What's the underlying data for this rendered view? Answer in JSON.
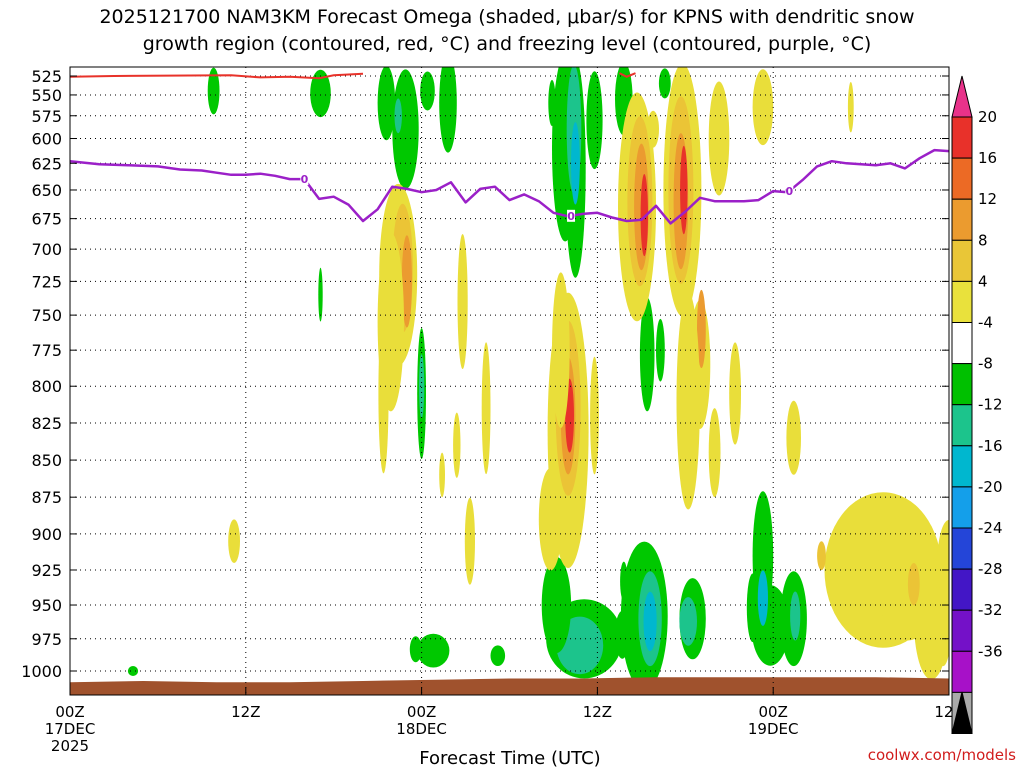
{
  "chart_data": {
    "type": "heatmap",
    "title_line1": "2025121700 NAM3KM Forecast Omega (shaded, μbar/s) for KPNS with dendritic snow",
    "title_line2": "growth region (contoured, red, °C) and freezing level (contoured, purple, °C)",
    "xlabel": "Forecast Time (UTC)",
    "credit": "coolwx.com/models",
    "y_ticks": [
      525,
      550,
      575,
      600,
      625,
      650,
      675,
      700,
      725,
      750,
      775,
      800,
      825,
      850,
      875,
      900,
      925,
      950,
      975,
      1000
    ],
    "x_ticks": [
      {
        "hour": 0,
        "label": "00Z",
        "sub": "17DEC",
        "sub2": "2025"
      },
      {
        "hour": 12,
        "label": "12Z",
        "sub": "",
        "sub2": ""
      },
      {
        "hour": 24,
        "label": "00Z",
        "sub": "18DEC",
        "sub2": ""
      },
      {
        "hour": 36,
        "label": "12Z",
        "sub": "",
        "sub2": ""
      },
      {
        "hour": 48,
        "label": "00Z",
        "sub": "19DEC",
        "sub2": ""
      },
      {
        "hour": 60,
        "label": "12Z",
        "sub": "",
        "sub2": ""
      }
    ],
    "colorbar": {
      "labels": [
        20,
        16,
        12,
        8,
        4,
        -4,
        -8,
        -12,
        -16,
        -20,
        -24,
        -28,
        -32,
        -36
      ],
      "colors": [
        "#e8328a",
        "#e8312a",
        "#ec6a25",
        "#eb9b2f",
        "#e9c637",
        "#e9e13c",
        "#ffffff",
        "#00c000",
        "#1cc48c",
        "#00b7cf",
        "#149fea",
        "#2445d8",
        "#4316c6",
        "#7411c8",
        "#a711c8",
        "#aaaaaa",
        "#000000"
      ]
    },
    "omega_colors": {
      "o4": "#e9de3a",
      "o8": "#ebc436",
      "o12": "#eb9b30",
      "o16": "#ec6a26",
      "o20": "#e8322a",
      "n4": "#00c800",
      "n8": "#1cc48c",
      "n12": "#00b7cf",
      "n16": "#149fea"
    },
    "freezing_level_label": "0",
    "freezing_level": [
      {
        "h": 0,
        "p": 623
      },
      {
        "h": 2,
        "p": 626
      },
      {
        "h": 4,
        "p": 627
      },
      {
        "h": 6,
        "p": 628
      },
      {
        "h": 7.5,
        "p": 631
      },
      {
        "h": 9,
        "p": 632
      },
      {
        "h": 10,
        "p": 634
      },
      {
        "h": 11,
        "p": 636
      },
      {
        "h": 12,
        "p": 636
      },
      {
        "h": 13,
        "p": 635
      },
      {
        "h": 14,
        "p": 637
      },
      {
        "h": 15,
        "p": 640
      },
      {
        "h": 16,
        "p": 640
      },
      {
        "h": 17,
        "p": 658
      },
      {
        "h": 18,
        "p": 656
      },
      {
        "h": 19,
        "p": 663
      },
      {
        "h": 20,
        "p": 677
      },
      {
        "h": 21,
        "p": 667
      },
      {
        "h": 22,
        "p": 647
      },
      {
        "h": 23,
        "p": 649
      },
      {
        "h": 24,
        "p": 652
      },
      {
        "h": 25,
        "p": 650
      },
      {
        "h": 26,
        "p": 643
      },
      {
        "h": 27,
        "p": 661
      },
      {
        "h": 28,
        "p": 649
      },
      {
        "h": 29,
        "p": 647
      },
      {
        "h": 30,
        "p": 659
      },
      {
        "h": 31,
        "p": 654
      },
      {
        "h": 32,
        "p": 660
      },
      {
        "h": 33,
        "p": 670
      },
      {
        "h": 34,
        "p": 673
      },
      {
        "h": 35,
        "p": 671
      },
      {
        "h": 36,
        "p": 670
      },
      {
        "h": 37,
        "p": 674
      },
      {
        "h": 38,
        "p": 677
      },
      {
        "h": 39,
        "p": 676
      },
      {
        "h": 40,
        "p": 664
      },
      {
        "h": 41,
        "p": 679
      },
      {
        "h": 42,
        "p": 669
      },
      {
        "h": 43,
        "p": 657
      },
      {
        "h": 44,
        "p": 660
      },
      {
        "h": 45,
        "p": 660
      },
      {
        "h": 46,
        "p": 660
      },
      {
        "h": 47,
        "p": 659
      },
      {
        "h": 48,
        "p": 651
      },
      {
        "h": 49,
        "p": 652
      },
      {
        "h": 50,
        "p": 641
      },
      {
        "h": 51,
        "p": 628
      },
      {
        "h": 52,
        "p": 623
      },
      {
        "h": 53,
        "p": 625
      },
      {
        "h": 54,
        "p": 626
      },
      {
        "h": 55,
        "p": 627
      },
      {
        "h": 56,
        "p": 625
      },
      {
        "h": 57,
        "p": 630
      },
      {
        "h": 58,
        "p": 620
      },
      {
        "h": 59,
        "p": 612
      },
      {
        "h": 60,
        "p": 613
      }
    ],
    "freezing_label_hours": [
      16,
      34.2,
      49.1
    ],
    "dgz_contour": [
      {
        "h": 0,
        "p": 526
      },
      {
        "h": 3,
        "p": 525
      },
      {
        "h": 11,
        "p": 524
      },
      {
        "h": 13,
        "p": 527
      },
      {
        "h": 15,
        "p": 526
      },
      {
        "h": 17,
        "p": 528
      },
      {
        "h": 18,
        "p": 524
      },
      {
        "h": 20,
        "p": 522
      }
    ],
    "ground_pressure": 1013
  }
}
